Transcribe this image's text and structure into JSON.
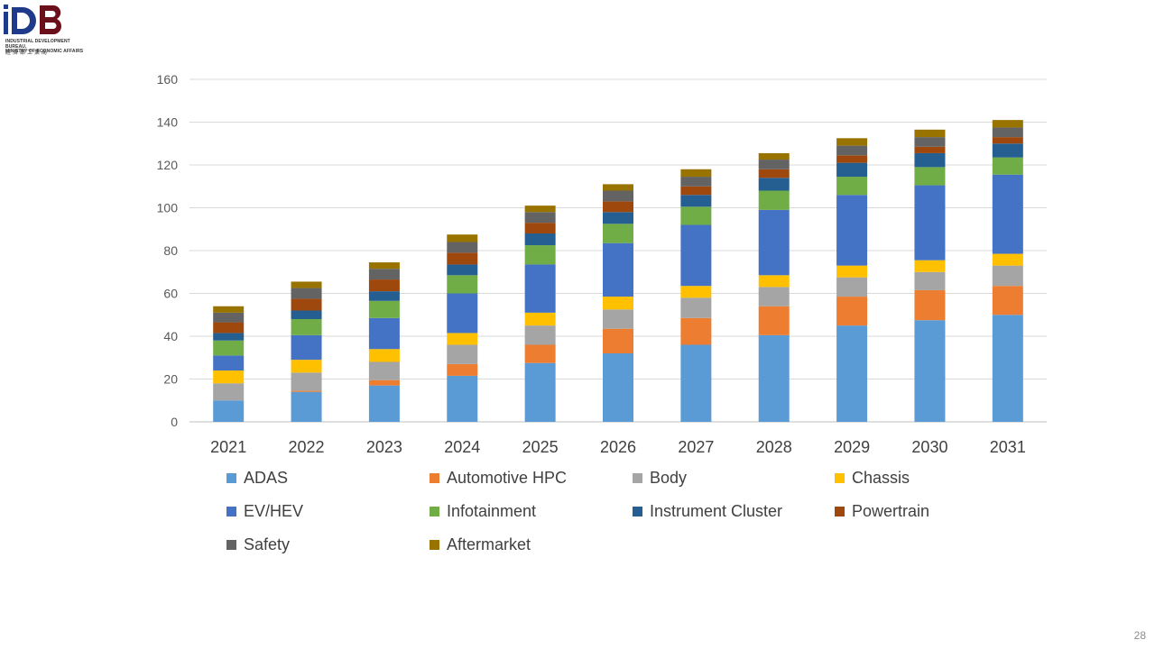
{
  "header": {
    "logo_text": "IDB",
    "org_name_en": "INDUSTRIAL DEVELOPMENT BUREAU,\nMINISTRY OF ECONOMIC AFFAIRS",
    "org_name_zh": "經濟部工業局"
  },
  "page_number": "28",
  "colors": {
    "ADAS": "#5B9BD5",
    "Automotive HPC": "#ED7D31",
    "Body": "#A5A5A5",
    "Chassis": "#FFC000",
    "EV/HEV": "#4472C4",
    "Infotainment": "#70AD47",
    "Instrument Cluster": "#255E91",
    "Powertrain": "#9E480E",
    "Safety": "#636363",
    "Aftermarket": "#997300"
  },
  "chart_data": {
    "type": "bar",
    "stacked": true,
    "title": "",
    "xlabel": "",
    "ylabel": "",
    "ylim": [
      0,
      160
    ],
    "yticks": [
      0,
      20,
      40,
      60,
      80,
      100,
      120,
      140,
      160
    ],
    "grid": true,
    "legend_position": "bottom",
    "categories": [
      "2021",
      "2022",
      "2023",
      "2024",
      "2025",
      "2026",
      "2027",
      "2028",
      "2029",
      "2030",
      "2031"
    ],
    "series": [
      {
        "name": "ADAS",
        "values": [
          10,
          14,
          17,
          21.5,
          27.5,
          32,
          36,
          40.5,
          45,
          47.5,
          50
        ]
      },
      {
        "name": "Automotive HPC",
        "values": [
          0,
          0.5,
          2.5,
          5.5,
          8.5,
          11.5,
          12.5,
          13.5,
          13.5,
          14,
          13.5
        ]
      },
      {
        "name": "Body",
        "values": [
          8,
          8.5,
          8.5,
          9,
          9,
          9,
          9.5,
          9,
          9,
          8.5,
          9.5
        ]
      },
      {
        "name": "Chassis",
        "values": [
          6,
          6,
          6,
          5.5,
          6,
          6,
          5.5,
          5.5,
          5.5,
          5.5,
          5.5
        ]
      },
      {
        "name": "EV/HEV",
        "values": [
          7,
          11.5,
          14.5,
          18.5,
          22.5,
          25,
          28.5,
          30.5,
          33,
          35,
          37
        ]
      },
      {
        "name": "Infotainment",
        "values": [
          7,
          7.5,
          8,
          8.5,
          9,
          9,
          8.5,
          9,
          8.5,
          8.5,
          8
        ]
      },
      {
        "name": "Instrument Cluster",
        "values": [
          3.5,
          4,
          4.5,
          5,
          5.5,
          5.5,
          5.5,
          6,
          6.5,
          6.5,
          6.5
        ]
      },
      {
        "name": "Powertrain",
        "values": [
          5,
          5.5,
          5.5,
          5.5,
          5,
          5,
          4,
          4,
          3.5,
          3,
          3
        ]
      },
      {
        "name": "Safety",
        "values": [
          4.5,
          5,
          5,
          5,
          5,
          5,
          4.5,
          4.5,
          4.5,
          4.5,
          4.5
        ]
      },
      {
        "name": "Aftermarket",
        "values": [
          3,
          3,
          3,
          3.5,
          3,
          3,
          3.5,
          3,
          3.5,
          3.5,
          3.5
        ]
      }
    ]
  }
}
